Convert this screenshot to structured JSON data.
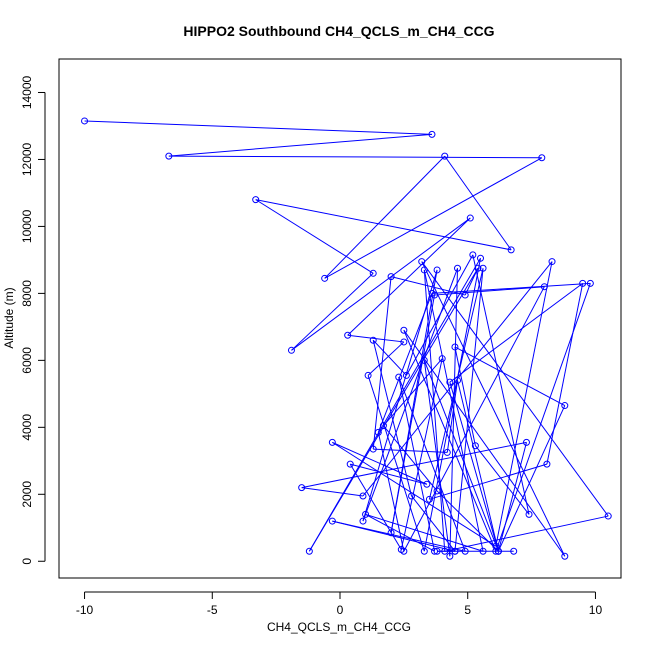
{
  "chart_data": {
    "type": "line",
    "title": "HIPPO2 Southbound CH4_QCLS_m_CH4_CCG",
    "xlabel": "CH4_QCLS_m_CH4_CCG",
    "ylabel": "Altitude (m)",
    "xlim": [
      -11,
      11
    ],
    "ylim": [
      -500,
      15000
    ],
    "x_ticks": [
      -10,
      -5,
      0,
      5,
      10
    ],
    "y_ticks": [
      0,
      2000,
      4000,
      6000,
      8000,
      10000,
      12000,
      14000
    ],
    "grid": false,
    "legend": "none",
    "style": "points connected by lines (open circle markers)",
    "series": [
      {
        "color": "#0000ff",
        "points": [
          [
            -10.0,
            13150
          ],
          [
            3.6,
            12750
          ],
          [
            -6.7,
            12100
          ],
          [
            7.9,
            12050
          ],
          [
            -0.6,
            8450
          ],
          [
            4.1,
            12100
          ],
          [
            6.7,
            9300
          ],
          [
            -3.3,
            10800
          ],
          [
            1.3,
            8600
          ],
          [
            -1.9,
            6300
          ],
          [
            5.1,
            10250
          ],
          [
            0.3,
            6750
          ],
          [
            2.5,
            6550
          ],
          [
            1.1,
            5550
          ],
          [
            3.3,
            300
          ],
          [
            5.5,
            9050
          ],
          [
            -1.2,
            300
          ],
          [
            5.4,
            8750
          ],
          [
            4.9,
            7950
          ],
          [
            2.0,
            8500
          ],
          [
            1.3,
            3350
          ],
          [
            4.2,
            3250
          ],
          [
            4.6,
            5400
          ],
          [
            6.2,
            300
          ],
          [
            8.8,
            4650
          ],
          [
            4.5,
            6400
          ],
          [
            5.3,
            3450
          ],
          [
            7.4,
            1400
          ],
          [
            5.2,
            9150
          ],
          [
            2.6,
            5550
          ],
          [
            1.3,
            6600
          ],
          [
            2.8,
            1950
          ],
          [
            4.5,
            300
          ],
          [
            5.6,
            8750
          ],
          [
            3.5,
            1850
          ],
          [
            8.1,
            2900
          ],
          [
            9.5,
            8300
          ],
          [
            4.3,
            5350
          ],
          [
            6.2,
            300
          ],
          [
            3.8,
            2100
          ],
          [
            1.7,
            4050
          ],
          [
            4.0,
            6050
          ],
          [
            2.4,
            350
          ],
          [
            0.4,
            2900
          ],
          [
            3.4,
            2300
          ],
          [
            -0.3,
            3550
          ],
          [
            6.1,
            450
          ],
          [
            8.3,
            8950
          ],
          [
            0.9,
            1950
          ],
          [
            -1.5,
            2200
          ],
          [
            7.3,
            3550
          ],
          [
            6.2,
            300
          ],
          [
            3.3,
            6000
          ],
          [
            4.3,
            150
          ],
          [
            4.6,
            8750
          ],
          [
            0.9,
            1200
          ],
          [
            3.8,
            8700
          ],
          [
            2.0,
            850
          ],
          [
            3.7,
            7950
          ],
          [
            8.0,
            8200
          ],
          [
            2.5,
            300
          ],
          [
            1.5,
            3850
          ],
          [
            3.6,
            8000
          ],
          [
            9.8,
            8300
          ],
          [
            6.1,
            300
          ],
          [
            2.5,
            6900
          ],
          [
            8.8,
            150
          ],
          [
            3.2,
            8950
          ],
          [
            10.5,
            1350
          ],
          [
            4.1,
            300
          ],
          [
            3.3,
            8700
          ],
          [
            5.6,
            300
          ],
          [
            1.0,
            1400
          ],
          [
            3.7,
            300
          ],
          [
            2.3,
            5500
          ],
          [
            4.9,
            300
          ],
          [
            -0.3,
            1200
          ],
          [
            4.5,
            300
          ],
          [
            3.8,
            300
          ],
          [
            6.8,
            300
          ]
        ]
      }
    ]
  }
}
